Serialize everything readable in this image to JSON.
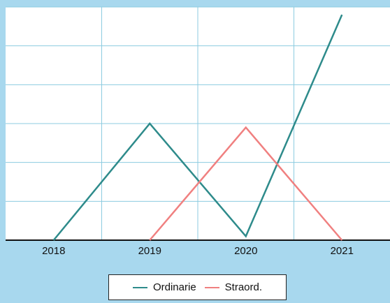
{
  "chart_data": {
    "type": "line",
    "title": "",
    "xlabel": "",
    "ylabel": "",
    "categories": [
      "2018",
      "2019",
      "2020",
      "2021"
    ],
    "ylim": [
      0,
      6
    ],
    "grid": true,
    "legend_position": "bottom",
    "series": [
      {
        "name": "Ordinarie",
        "color": "#2e8b8b",
        "values": [
          0,
          3,
          0.1,
          5.8
        ]
      },
      {
        "name": "Straord.",
        "color": "#f08080",
        "values": [
          null,
          0,
          2.9,
          0
        ]
      }
    ],
    "colors": {
      "background": "#a8d8ee",
      "plot_background": "#ffffff",
      "grid": "#8ccbe0",
      "axis": "#111111"
    }
  }
}
